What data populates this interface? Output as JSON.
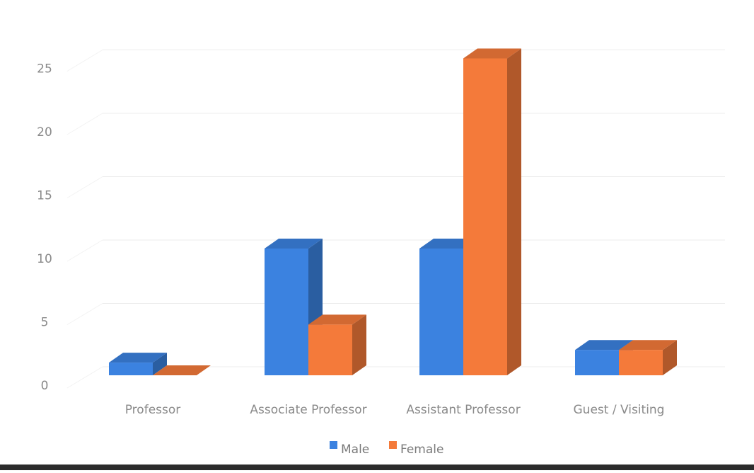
{
  "chart_data": {
    "type": "bar",
    "style": "3d-clustered-column",
    "categories": [
      "Professor",
      "Associate Professor",
      "Assistant Professor",
      "Guest / Visiting"
    ],
    "series": [
      {
        "name": "Male",
        "values": [
          1,
          10,
          10,
          2
        ],
        "color": "#3b82e0"
      },
      {
        "name": "Female",
        "values": [
          0,
          4,
          25,
          2
        ],
        "color": "#f47a3a"
      }
    ],
    "yticks": [
      "0",
      "5",
      "10",
      "15",
      "20",
      "25"
    ],
    "ylim": [
      0,
      27
    ],
    "grid": true,
    "legend": "bottom"
  }
}
